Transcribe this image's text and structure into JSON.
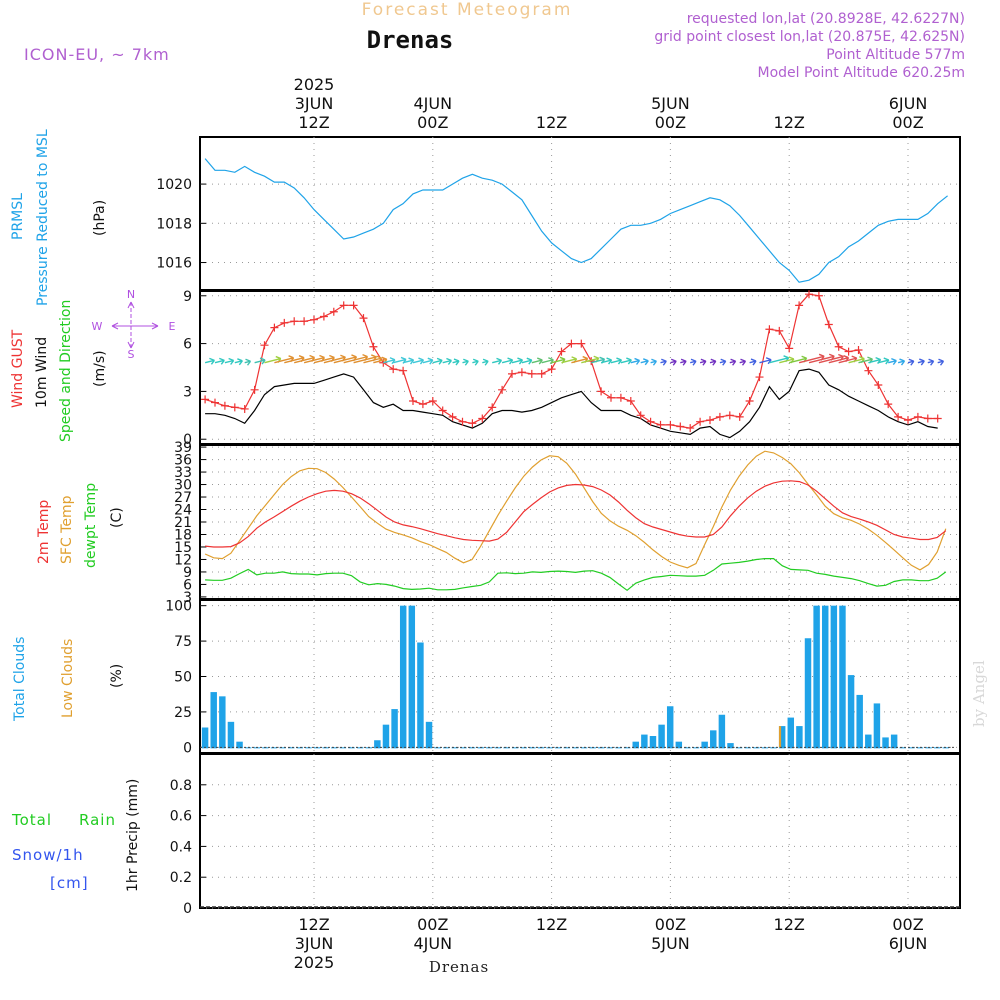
{
  "header": {
    "product_title": "Forecast Meteogram",
    "station": "Drenas",
    "model": "ICON-EU, ~ 7km",
    "requested": "requested lon,lat (20.8928E, 42.6227N)",
    "grid_point": "grid point closest lon,lat (20.875E, 42.625N)",
    "point_altitude": "Point Altitude 577m",
    "model_altitude": "Model Point Altitude 620.25m"
  },
  "footer": {
    "station": "Drenas",
    "credit": "by Angel"
  },
  "colors": {
    "pressure": "#1fa3e8",
    "gust": "#ee3333",
    "wind": "#000000",
    "temp2m": "#ee3333",
    "sfc_temp": "#e0a030",
    "dewpoint": "#22cc22",
    "total_clouds": "#1fa3e8",
    "low_clouds": "#e0a030",
    "rain": "#22cc22",
    "snow": "#3355ee",
    "header_purple": "#b060d0",
    "compass": "#b050e0"
  },
  "time_axis": {
    "top_labels": [
      {
        "hour": 0,
        "lines": [
          "2025",
          "3JUN",
          "12Z"
        ]
      },
      {
        "hour": 12,
        "lines": [
          "4JUN",
          "00Z"
        ]
      },
      {
        "hour": 24,
        "lines": [
          "12Z"
        ]
      },
      {
        "hour": 36,
        "lines": [
          "5JUN",
          "00Z"
        ]
      },
      {
        "hour": 48,
        "lines": [
          "12Z"
        ]
      },
      {
        "hour": 60,
        "lines": [
          "6JUN",
          "00Z"
        ]
      }
    ],
    "bottom_labels": [
      {
        "hour": 0,
        "lines": [
          "12Z",
          "3JUN",
          "2025"
        ]
      },
      {
        "hour": 12,
        "lines": [
          "00Z",
          "4JUN"
        ]
      },
      {
        "hour": 24,
        "lines": [
          "12Z"
        ]
      },
      {
        "hour": 36,
        "lines": [
          "00Z",
          "5JUN"
        ]
      },
      {
        "hour": 48,
        "lines": [
          "12Z"
        ]
      },
      {
        "hour": 60,
        "lines": [
          "00Z",
          "6JUN"
        ]
      }
    ]
  },
  "panel_labels": {
    "pressure": {
      "line1": "PRMSL",
      "line2": "Pressure Reduced to MSL",
      "unit": "(hPa)"
    },
    "wind": {
      "gust": "Wind GUST",
      "wind": "10m Wind",
      "dir": "Speed and Direction",
      "unit": "(m/s)"
    },
    "compass": {
      "n": "N",
      "s": "S",
      "w": "W",
      "e": "E"
    },
    "temperature": {
      "t2m": "2m Temp",
      "sfc": "SFC Temp",
      "dew": "dewpt Temp",
      "unit": "(C)"
    },
    "clouds": {
      "total": "Total Clouds",
      "low": "Low Clouds",
      "unit": "(%)"
    },
    "precip": {
      "total": "Total",
      "rain": "Rain",
      "snow": "Snow/1h",
      "cm": "[cm]",
      "unit": "1hr Precip (mm)"
    }
  },
  "chart_data": [
    {
      "type": "line",
      "name": "pressure",
      "ylabel": "PRMSL Pressure Reduced to MSL (hPa)",
      "yticks": [
        1016,
        1018,
        1020
      ],
      "ylim": [
        1014.6,
        1022.4
      ],
      "x_hours_start": -11,
      "x_step_hours": 1,
      "series": [
        {
          "name": "PRMSL",
          "values": [
            1021.3,
            1020.7,
            1020.7,
            1020.6,
            1020.9,
            1020.6,
            1020.4,
            1020.1,
            1020.1,
            1019.8,
            1019.3,
            1018.7,
            1018.2,
            1017.7,
            1017.2,
            1017.3,
            1017.5,
            1017.7,
            1018.0,
            1018.7,
            1019.0,
            1019.5,
            1019.7,
            1019.7,
            1019.7,
            1020.0,
            1020.3,
            1020.5,
            1020.3,
            1020.2,
            1020.0,
            1019.6,
            1019.2,
            1018.4,
            1017.6,
            1017.0,
            1016.6,
            1016.2,
            1016.0,
            1016.2,
            1016.7,
            1017.2,
            1017.7,
            1017.9,
            1017.9,
            1018.0,
            1018.2,
            1018.5,
            1018.7,
            1018.9,
            1019.1,
            1019.3,
            1019.2,
            1018.9,
            1018.4,
            1017.8,
            1017.2,
            1016.6,
            1016.0,
            1015.6,
            1015.0,
            1015.1,
            1015.4,
            1016.0,
            1016.3,
            1016.8,
            1017.1,
            1017.5,
            1017.9,
            1018.1,
            1018.2,
            1018.2,
            1018.2,
            1018.5,
            1019.0,
            1019.4
          ]
        }
      ]
    },
    {
      "type": "line",
      "name": "wind",
      "ylabel": "(m/s)",
      "yticks": [
        0,
        3,
        6,
        9
      ],
      "ylim": [
        -0.3,
        9.3
      ],
      "x_hours_start": -11,
      "x_step_hours": 1,
      "series": [
        {
          "name": "Wind GUST",
          "values": [
            2.5,
            2.3,
            2.1,
            2.0,
            1.9,
            3.1,
            5.9,
            7.0,
            7.3,
            7.4,
            7.4,
            7.5,
            7.7,
            8.0,
            8.4,
            8.4,
            7.6,
            5.8,
            4.8,
            4.4,
            4.3,
            2.4,
            2.2,
            2.4,
            1.8,
            1.4,
            1.1,
            1.0,
            1.3,
            2.0,
            3.1,
            4.1,
            4.2,
            4.1,
            4.1,
            4.4,
            5.5,
            6.0,
            6.0,
            4.9,
            3.0,
            2.6,
            2.6,
            2.4,
            1.5,
            1.1,
            0.9,
            0.9,
            0.8,
            0.7,
            1.1,
            1.2,
            1.4,
            1.5,
            1.4,
            2.4,
            3.9,
            6.9,
            6.8,
            5.7,
            8.4,
            9.1,
            9.0,
            7.2,
            5.8,
            5.5,
            5.6,
            4.3,
            3.4,
            2.2,
            1.4,
            1.2,
            1.4,
            1.3,
            1.3
          ]
        },
        {
          "name": "10m Wind",
          "values": [
            1.6,
            1.6,
            1.5,
            1.3,
            1.0,
            1.8,
            2.8,
            3.3,
            3.4,
            3.5,
            3.5,
            3.5,
            3.7,
            3.9,
            4.1,
            3.9,
            3.1,
            2.3,
            2.0,
            2.2,
            1.8,
            1.8,
            1.7,
            1.6,
            1.5,
            1.1,
            0.9,
            0.7,
            1.0,
            1.6,
            1.8,
            1.8,
            1.7,
            1.8,
            2.0,
            2.3,
            2.6,
            2.8,
            3.0,
            2.3,
            1.8,
            1.8,
            1.8,
            1.5,
            1.3,
            0.9,
            0.7,
            0.5,
            0.4,
            0.3,
            0.7,
            0.8,
            0.3,
            0.1,
            0.5,
            1.1,
            2.0,
            3.3,
            2.5,
            3.0,
            4.3,
            4.4,
            4.2,
            3.4,
            3.1,
            2.7,
            2.4,
            2.1,
            1.8,
            1.4,
            1.1,
            0.9,
            1.1,
            0.8,
            0.7
          ]
        }
      ],
      "direction_arrow_colors": [
        "#30c8c0",
        "#30c8c0",
        "#30c8c0",
        "#30c8c0",
        "#40c0b0",
        "#40c0b0",
        "#a0d040",
        "#e09030",
        "#e09030",
        "#e09030",
        "#e09030",
        "#e09030",
        "#e09030",
        "#e09030",
        "#e09030",
        "#e09030",
        "#e09030",
        "#e09030",
        "#40c8d8",
        "#40c8d8",
        "#40c8d8",
        "#40c8d8",
        "#40c8d8",
        "#30c8c0",
        "#30c8c0",
        "#30c8c0",
        "#30c8c0",
        "#30c8c0",
        "#30c8c0",
        "#30c8c0",
        "#30c8c0",
        "#30c8c0",
        "#30c8c0",
        "#60c070",
        "#60c070",
        "#80c840",
        "#a0d040",
        "#e09030",
        "#a0d040",
        "#40c0b0",
        "#30c8c0",
        "#30c8c0",
        "#30c8c0",
        "#30a8e8",
        "#30a8e8",
        "#30a8e8",
        "#4060e0",
        "#7030c0",
        "#7030c0",
        "#4060e0",
        "#7030c0",
        "#7030c0",
        "#4060e0",
        "#7030c0",
        "#7030c0",
        "#4060e0",
        "#4060e0",
        "#30c8c0",
        "#a0d040",
        "#80c840",
        "#e05050",
        "#e05050",
        "#e05050",
        "#e05050",
        "#e05050",
        "#a0d040",
        "#60c070",
        "#30c8c0",
        "#30c8c0",
        "#30a8e8",
        "#30a8e8",
        "#4060e0",
        "#4060e0",
        "#4060e0",
        "#4060e0"
      ]
    },
    {
      "type": "line",
      "name": "temperature",
      "ylabel": "(C)",
      "yticks": [
        3,
        6,
        9,
        12,
        15,
        18,
        21,
        24,
        27,
        30,
        33,
        36,
        39
      ],
      "ylim": [
        2.5,
        39.5
      ],
      "x_hours_start": -11,
      "x_step_hours": 1,
      "series": [
        {
          "name": "2m Temp",
          "values": [
            15.2,
            15.0,
            15.0,
            15.1,
            16.0,
            17.5,
            19.5,
            21.0,
            22.2,
            23.5,
            24.8,
            26.0,
            27.0,
            27.8,
            28.4,
            28.6,
            28.4,
            27.8,
            26.8,
            25.4,
            23.8,
            22.2,
            21.0,
            20.3,
            19.9,
            19.4,
            18.8,
            18.2,
            17.7,
            17.2,
            16.8,
            16.6,
            16.5,
            16.4,
            16.9,
            18.5,
            21.0,
            23.5,
            25.2,
            26.8,
            28.2,
            29.2,
            29.8,
            30.0,
            29.9,
            29.5,
            28.7,
            27.5,
            25.8,
            23.8,
            22.0,
            20.6,
            19.8,
            19.2,
            18.6,
            18.0,
            17.6,
            17.4,
            17.4,
            18.0,
            19.8,
            22.5,
            24.8,
            26.8,
            28.4,
            29.6,
            30.4,
            30.8,
            30.9,
            30.7,
            29.9,
            28.4,
            26.6,
            24.8,
            23.2,
            22.3,
            21.7,
            21.0,
            20.2,
            19.1,
            18.0,
            17.4,
            17.1,
            16.8,
            16.8,
            17.3,
            18.9
          ]
        },
        {
          "name": "SFC Temp",
          "values": [
            13.3,
            12.4,
            12.2,
            13.5,
            16.5,
            19.5,
            22.5,
            25.0,
            27.5,
            30.0,
            31.9,
            33.3,
            33.9,
            33.8,
            32.9,
            31.3,
            29.3,
            27.0,
            24.7,
            22.3,
            20.7,
            19.3,
            18.5,
            17.9,
            17.2,
            16.3,
            15.6,
            14.6,
            13.7,
            12.3,
            11.2,
            12.0,
            15.2,
            18.9,
            22.6,
            26.0,
            29.2,
            32.0,
            34.2,
            35.9,
            36.9,
            36.7,
            35.1,
            32.5,
            29.2,
            25.9,
            23.1,
            21.3,
            20.0,
            19.0,
            17.7,
            16.1,
            14.3,
            12.7,
            11.4,
            10.6,
            10.0,
            11.0,
            15.6,
            19.9,
            24.6,
            28.7,
            32.0,
            34.7,
            36.8,
            38.0,
            37.6,
            36.5,
            35.0,
            32.8,
            30.1,
            27.5,
            24.8,
            23.0,
            22.0,
            21.4,
            20.5,
            19.3,
            17.8,
            16.1,
            14.3,
            12.4,
            10.6,
            9.5,
            10.8,
            13.8,
            19.4
          ]
        },
        {
          "name": "dewpt Temp",
          "values": [
            7.1,
            7.0,
            7.0,
            7.5,
            8.6,
            9.6,
            8.3,
            8.7,
            8.7,
            9.0,
            8.6,
            8.5,
            8.5,
            8.3,
            8.6,
            8.7,
            8.7,
            8.1,
            6.6,
            5.9,
            6.2,
            6.0,
            5.6,
            5.0,
            4.8,
            4.9,
            5.1,
            4.7,
            4.7,
            4.8,
            5.2,
            5.5,
            5.8,
            6.6,
            8.7,
            8.8,
            8.6,
            8.7,
            9.0,
            8.9,
            9.1,
            9.2,
            9.1,
            8.9,
            9.2,
            9.3,
            8.7,
            7.7,
            6.1,
            4.6,
            6.3,
            7.1,
            7.7,
            7.9,
            8.2,
            8.1,
            8.0,
            8.0,
            8.2,
            9.4,
            10.9,
            11.1,
            11.3,
            11.6,
            12.0,
            12.2,
            12.2,
            10.5,
            9.6,
            9.5,
            9.4,
            8.7,
            8.4,
            8.0,
            7.7,
            7.4,
            6.9,
            6.2,
            5.6,
            5.8,
            6.7,
            7.1,
            7.1,
            6.9,
            6.9,
            7.5,
            9.0
          ]
        }
      ],
      "temp_x_hours_start": -11,
      "temp_x_step_hours": 0.87
    },
    {
      "type": "bar",
      "name": "clouds",
      "ylabel": "(%)",
      "yticks": [
        0,
        25,
        50,
        75,
        100
      ],
      "ylim": [
        -4,
        104
      ],
      "x_hours_start": -11,
      "x_step_hours": 1,
      "series": [
        {
          "name": "Total Clouds",
          "values": [
            14,
            39,
            36,
            18,
            4,
            0,
            0,
            0,
            0,
            0,
            0,
            0,
            0,
            0,
            0,
            0,
            0,
            0,
            0,
            0,
            5,
            16,
            27,
            100,
            100,
            74,
            18,
            0,
            0,
            0,
            0,
            0,
            0,
            0,
            0,
            0,
            0,
            0,
            0,
            0,
            0,
            0,
            0,
            0,
            0,
            0,
            0,
            0,
            0,
            0,
            4,
            9,
            8,
            16,
            29,
            4,
            0,
            0,
            4,
            12,
            23,
            3,
            0,
            0,
            0,
            0,
            0,
            15,
            21,
            15,
            77,
            100,
            100,
            100,
            100,
            51,
            37,
            9,
            31,
            7,
            9,
            0,
            0,
            0,
            0,
            0,
            0
          ]
        },
        {
          "name": "Low Clouds",
          "values": [
            0,
            0,
            0,
            0,
            0,
            0,
            0,
            0,
            0,
            0,
            0,
            0,
            0,
            0,
            0,
            0,
            0,
            0,
            0,
            0,
            0,
            0,
            0,
            0,
            0,
            0,
            0,
            0,
            0,
            0,
            0,
            0,
            0,
            0,
            0,
            0,
            0,
            0,
            0,
            0,
            0,
            0,
            0,
            0,
            0,
            0,
            0,
            0,
            0,
            0,
            0,
            0,
            0,
            0,
            0,
            0,
            0,
            0,
            0,
            0,
            0,
            0,
            0,
            0,
            0,
            0,
            0,
            15,
            0,
            0,
            0,
            0,
            0,
            0,
            0,
            0,
            0,
            0,
            0,
            0,
            0,
            0,
            0,
            0,
            0,
            0,
            0
          ]
        }
      ],
      "cloud_x_step_hours": 0.87
    },
    {
      "type": "line",
      "name": "precipitation",
      "ylabel": "1hr Precip (mm)",
      "yticks": [
        0,
        0.2,
        0.4,
        0.6,
        0.8
      ],
      "ylim": [
        0,
        1.0
      ],
      "series": [
        {
          "name": "Total Rain",
          "values": [
            0
          ]
        },
        {
          "name": "Snow/1h [cm]",
          "values": [
            0
          ]
        }
      ]
    }
  ]
}
